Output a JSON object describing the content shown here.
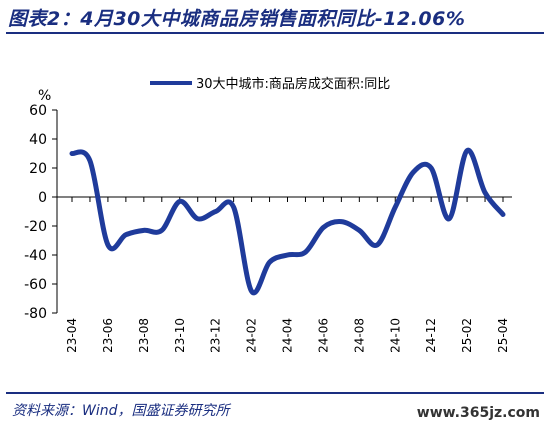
{
  "header": {
    "title": "图表2：4月30大中城商品房销售面积同比-12.06%"
  },
  "footer": {
    "source": "资料来源：Wind，国盛证券研究所",
    "watermark": "www.365jz.com"
  },
  "chart_data": {
    "type": "line",
    "ylabel": "%",
    "ylim": [
      -80,
      60
    ],
    "yticks": [
      -80,
      -60,
      -40,
      -20,
      0,
      20,
      40,
      60
    ],
    "x_tick_labels": [
      "23-04",
      "23-06",
      "23-08",
      "23-10",
      "23-12",
      "24-02",
      "24-04",
      "24-06",
      "24-08",
      "24-10",
      "24-12",
      "25-02",
      "25-04"
    ],
    "grid": false,
    "legend_position": "top",
    "series": [
      {
        "name": "30大中城市:商品房成交面积:同比",
        "color": "#1f3b9b",
        "x": [
          "23-04",
          "23-05",
          "23-06",
          "23-07",
          "23-08",
          "23-09",
          "23-10",
          "23-11",
          "23-12",
          "24-01",
          "24-02",
          "24-03",
          "24-04",
          "24-05",
          "24-06",
          "24-07",
          "24-08",
          "24-09",
          "24-10",
          "24-11",
          "24-12",
          "25-01",
          "25-02",
          "25-03",
          "25-04"
        ],
        "values": [
          30,
          25,
          -33,
          -26,
          -23,
          -23,
          -3,
          -15,
          -10,
          -7,
          -65,
          -45,
          -40,
          -38,
          -21,
          -17,
          -23,
          -33,
          -7,
          17,
          20,
          -15,
          32,
          3,
          -12.06
        ]
      }
    ]
  }
}
